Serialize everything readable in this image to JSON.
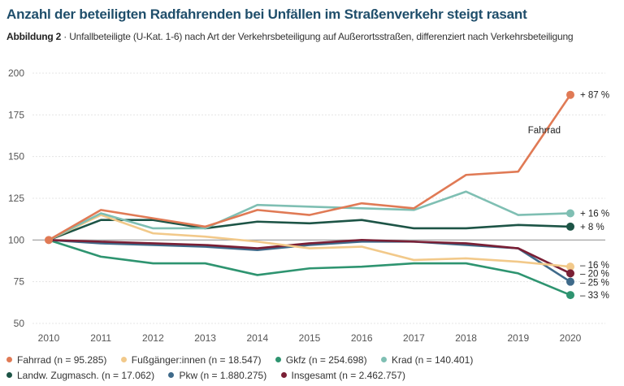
{
  "header": {
    "title": "Anzahl der beteiligten Radfahrenden bei Unfällen im Straßenverkehr steigt rasant",
    "figure_label": "Abbildung 2",
    "figure_sep": " · ",
    "figure_caption": "Unfallbeteiligte (U-Kat. 1-6) nach Art der Verkehrsbeteiligung auf Außerortsstraßen, differenziert nach Verkehrsbeteiligung"
  },
  "chart_data": {
    "type": "line",
    "title": "Anzahl der beteiligten Radfahrenden bei Unfällen im Straßenverkehr steigt rasant",
    "xlabel": "",
    "ylabel": "",
    "x": [
      2010,
      2011,
      2012,
      2013,
      2014,
      2015,
      2016,
      2017,
      2018,
      2019,
      2020
    ],
    "ylim": [
      50,
      200
    ],
    "yticks": [
      50,
      75,
      100,
      125,
      150,
      175,
      200
    ],
    "grid": true,
    "baseline": 100,
    "legend_position": "bottom",
    "annotation": {
      "text": "Fahrrad",
      "x": 2019.5,
      "y": 166
    },
    "series": [
      {
        "name": "Fahrrad",
        "n": "n = 95.285",
        "color": "#e07a55",
        "values": [
          100,
          118,
          113,
          108,
          118,
          115,
          122,
          119,
          139,
          141,
          187
        ],
        "end_label": "+ 87 %"
      },
      {
        "name": "Fußgänger:innen",
        "n": "n = 18.547",
        "color": "#f2c98a",
        "values": [
          100,
          115,
          104,
          102,
          99,
          95,
          96,
          88,
          89,
          87,
          84
        ],
        "end_label": "– 16 %"
      },
      {
        "name": "Gkfz",
        "n": "n = 254.698",
        "color": "#2e9470",
        "values": [
          100,
          90,
          86,
          86,
          79,
          83,
          84,
          86,
          86,
          80,
          67
        ],
        "end_label": "– 33 %"
      },
      {
        "name": "Krad",
        "n": "n = 140.401",
        "color": "#7fbfb3",
        "values": [
          100,
          116,
          107,
          107,
          121,
          120,
          119,
          118,
          129,
          115,
          116
        ],
        "end_label": "+ 16 %"
      },
      {
        "name": "Landw. Zugmasch.",
        "n": "n = 17.062",
        "color": "#1d5446",
        "values": [
          100,
          112,
          112,
          107,
          111,
          110,
          112,
          107,
          107,
          109,
          108
        ],
        "end_label": "+ 8 %"
      },
      {
        "name": "Pkw",
        "n": "n = 1.880.275",
        "color": "#3f6a8a",
        "values": [
          100,
          98,
          97,
          96,
          94,
          97,
          99,
          99,
          97,
          95,
          75
        ],
        "end_label": "– 25 %"
      },
      {
        "name": "Insgesamt",
        "n": "n = 2.462.757",
        "color": "#7a1f35",
        "values": [
          100,
          99,
          98,
          97,
          95,
          98,
          100,
          99,
          98,
          95,
          80
        ],
        "end_label": "– 20 %"
      }
    ]
  },
  "legend": {
    "rows": [
      [
        {
          "label": "Fahrrad (n = 95.285)",
          "color": "#e07a55"
        },
        {
          "label": "Fußgänger:innen (n = 18.547)",
          "color": "#f2c98a"
        },
        {
          "label": "Gkfz (n = 254.698)",
          "color": "#2e9470"
        },
        {
          "label": "Krad (n = 140.401)",
          "color": "#7fbfb3"
        }
      ],
      [
        {
          "label": "Landw. Zugmasch. (n = 17.062)",
          "color": "#1d5446"
        },
        {
          "label": "Pkw (n = 1.880.275)",
          "color": "#3f6a8a"
        },
        {
          "label": "Insgesamt (n = 2.462.757)",
          "color": "#7a1f35"
        }
      ]
    ]
  }
}
